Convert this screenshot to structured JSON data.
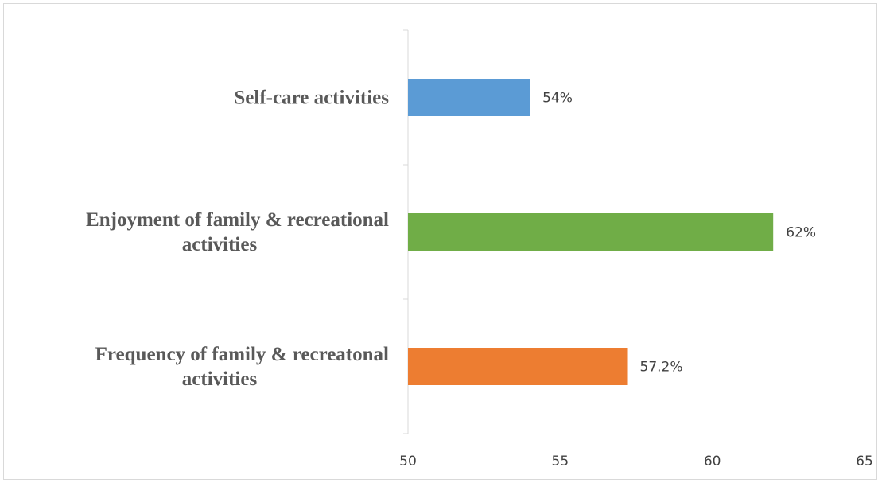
{
  "chart_data": {
    "type": "bar",
    "orientation": "horizontal",
    "categories": [
      [
        "Self-care activities"
      ],
      [
        "Enjoyment of family & recreational",
        "activities"
      ],
      [
        "Frequency of family & recreatonal",
        "activities"
      ]
    ],
    "values": [
      54,
      62,
      57.2
    ],
    "data_labels": [
      "54%",
      "62%",
      "57.2%"
    ],
    "colors": [
      "#5b9bd5",
      "#70ad47",
      "#ed7d31"
    ],
    "xlim": [
      50,
      65
    ],
    "xticks": [
      50,
      55,
      60,
      65
    ],
    "title": "",
    "xlabel": "",
    "ylabel": "",
    "grid": false,
    "legend": "none"
  }
}
